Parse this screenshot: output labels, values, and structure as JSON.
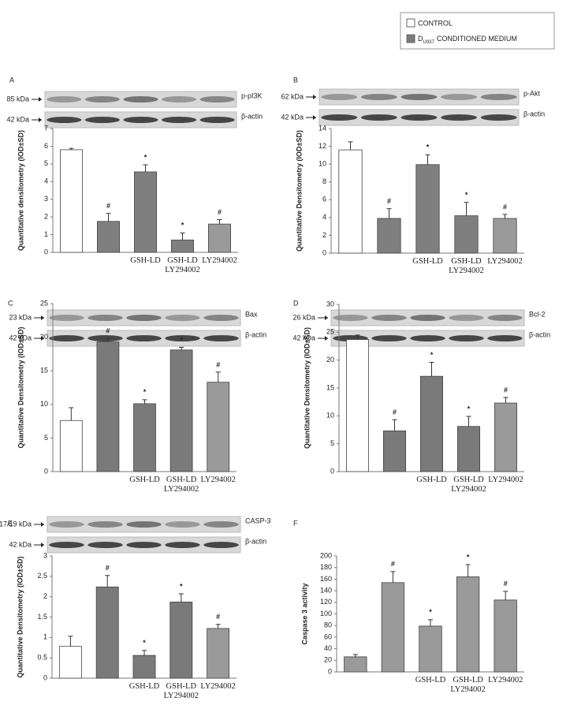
{
  "legend": [
    {
      "label": "CONTROL",
      "color": "#ffffff"
    },
    {
      "label": "D",
      "sub": "U937",
      "rest": "CONDITIONED MEDIUM",
      "color": "#7a7a7a"
    }
  ],
  "chart_data": [
    {
      "type": "bar",
      "title": "A",
      "blot": {
        "marker": "85 kDa",
        "protein": "p-pI3K",
        "control_marker": "42 kDa",
        "control_protein": "β-actin"
      },
      "y_label": "Quantitative densitometry (IOD±SD)",
      "categories": [
        null,
        null,
        "GSH-LD",
        "GSH-LD LY294002",
        "LY294002"
      ],
      "values": [
        5.8,
        1.75,
        4.55,
        0.7,
        1.6
      ],
      "errors": [
        0.08,
        0.45,
        0.4,
        0.4,
        0.25
      ],
      "annotations": [
        null,
        "#",
        "*",
        "*",
        "#"
      ],
      "colors": [
        "#ffffff",
        "#7f7f7f",
        "#7f7f7f",
        "#7f7f7f",
        "#9a9a9a"
      ],
      "ylim": [
        0,
        7
      ],
      "yticks": [
        0,
        1,
        2,
        3,
        4,
        5,
        6,
        7
      ]
    },
    {
      "type": "bar",
      "title": "B",
      "blot": {
        "marker": "62 kDa",
        "protein": "p-Akt",
        "control_marker": "42 kDa",
        "control_protein": "β-actin"
      },
      "y_label": "Quantitative Densitometry (IOD±SD)",
      "categories": [
        null,
        null,
        "GSH-LD",
        "GSH-LD LY294002",
        "LY294002"
      ],
      "values": [
        11.6,
        3.9,
        9.95,
        4.2,
        3.9
      ],
      "errors": [
        0.9,
        1.1,
        1.1,
        1.5,
        0.45
      ],
      "annotations": [
        null,
        "#",
        "*",
        "*",
        "#"
      ],
      "colors": [
        "#ffffff",
        "#7f7f7f",
        "#7f7f7f",
        "#7f7f7f",
        "#9a9a9a"
      ],
      "ylim": [
        0,
        14
      ],
      "yticks": [
        0,
        2,
        4,
        6,
        8,
        10,
        12,
        14
      ]
    },
    {
      "type": "bar",
      "title": "C",
      "blot": {
        "marker": "23 kDa",
        "protein": "Bax",
        "control_marker": "42 kDa",
        "control_protein": "β-actin"
      },
      "y_label": "Quantitative Densitometry (IOD±SD)",
      "categories": [
        null,
        null,
        "GSH-LD",
        "GSH-LD LY294002",
        "LY294002"
      ],
      "values": [
        7.6,
        19.3,
        10.1,
        18.1,
        13.3
      ],
      "errors": [
        1.9,
        0.5,
        0.6,
        0.4,
        1.5
      ],
      "annotations": [
        null,
        "#",
        "*",
        "*",
        "#"
      ],
      "colors": [
        "#ffffff",
        "#7a7a7a",
        "#7a7a7a",
        "#7a7a7a",
        "#9a9a9a"
      ],
      "ylim": [
        0,
        25
      ],
      "yticks": [
        0,
        5,
        10,
        15,
        20,
        25
      ]
    },
    {
      "type": "bar",
      "title": "D",
      "blot": {
        "marker": "26 kDa",
        "protein": "Bcl-2",
        "control_marker": "42 kDa",
        "control_protein": "β-actin"
      },
      "y_label": "Quantitative Densitometry (IOD±SD)",
      "categories": [
        null,
        null,
        "GSH-LD",
        "GSH-LD LY294002",
        "LY294002"
      ],
      "values": [
        23.7,
        7.3,
        17.1,
        8.1,
        12.3
      ],
      "errors": [
        0.8,
        2.0,
        2.5,
        1.8,
        1.0
      ],
      "annotations": [
        null,
        "#",
        "*",
        "*",
        "#"
      ],
      "colors": [
        "#ffffff",
        "#7a7a7a",
        "#7a7a7a",
        "#7a7a7a",
        "#9a9a9a"
      ],
      "ylim": [
        0,
        30
      ],
      "yticks": [
        0,
        5,
        10,
        15,
        20,
        25,
        30
      ]
    },
    {
      "type": "bar",
      "title": "E",
      "blot": {
        "marker": "17/19 kDa",
        "protein": "CASP-3",
        "control_marker": "42 kDa",
        "control_protein": "β-actin"
      },
      "y_label": "Quantitative Densitometry (IOD±SD)",
      "categories": [
        null,
        null,
        "GSH-LD",
        "GSH-LD LY294002",
        "LY294002"
      ],
      "values": [
        0.78,
        2.24,
        0.56,
        1.87,
        1.22
      ],
      "errors": [
        0.25,
        0.28,
        0.12,
        0.2,
        0.1
      ],
      "annotations": [
        null,
        "#",
        "*",
        "*",
        "#"
      ],
      "colors": [
        "#ffffff",
        "#7a7a7a",
        "#7a7a7a",
        "#7a7a7a",
        "#9a9a9a"
      ],
      "ylim": [
        0,
        3
      ],
      "yticks": [
        0,
        0.5,
        1,
        1.5,
        2,
        2.5,
        3
      ]
    },
    {
      "type": "bar",
      "title": "F",
      "y_label": "Caspase 3 activity",
      "categories": [
        null,
        null,
        "GSH-LD",
        "GSH-LD LY294002",
        "LY294002"
      ],
      "values": [
        26,
        154,
        79,
        164,
        124
      ],
      "errors": [
        4,
        19,
        11,
        21,
        15
      ],
      "annotations": [
        null,
        "#",
        "*",
        "*",
        "#"
      ],
      "colors": [
        "#9a9a9a",
        "#9a9a9a",
        "#9a9a9a",
        "#9a9a9a",
        "#9a9a9a"
      ],
      "ylim": [
        0,
        200
      ],
      "yticks": [
        0,
        20,
        40,
        60,
        80,
        100,
        120,
        140,
        160,
        180,
        200
      ]
    }
  ]
}
